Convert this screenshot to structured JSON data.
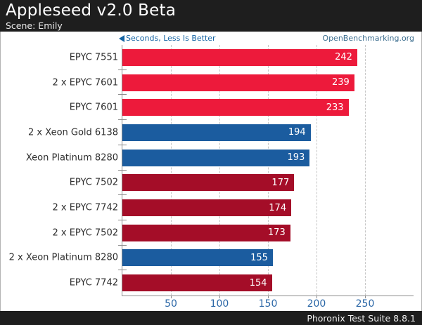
{
  "header": {
    "title": "Appleseed v2.0 Beta",
    "subtitle": "Scene: Emily"
  },
  "meta": {
    "orientation_note": "Seconds, Less Is Better",
    "watermark": "OpenBenchmarking.org"
  },
  "footer": {
    "text": "Phoronix Test Suite 8.8.1"
  },
  "colors": {
    "red": "#ed1a3b",
    "darkred": "#a40d28",
    "blue": "#1b5c9f",
    "accent_blue": "#1464a4",
    "watermark_teal": "#3c6e8f",
    "tick_blue": "#2a66a6"
  },
  "chart_data": {
    "type": "bar",
    "orientation": "horizontal",
    "title": "Appleseed v2.0 Beta",
    "subtitle": "Scene: Emily",
    "unit": "Seconds",
    "better": "Less Is Better",
    "xlim": [
      0,
      300
    ],
    "x_ticks": [
      50,
      100,
      150,
      200,
      250
    ],
    "grid": "dashed-vertical",
    "legend_position": "none",
    "categories": [
      "EPYC 7551",
      "2 x EPYC 7601",
      "EPYC 7601",
      "2 x Xeon Gold 6138",
      "Xeon Platinum 8280",
      "EPYC 7502",
      "2 x EPYC 7742",
      "2 x EPYC 7502",
      "2 x Xeon Platinum 8280",
      "EPYC 7742"
    ],
    "values": [
      242,
      239,
      233,
      194,
      193,
      177,
      174,
      173,
      155,
      154
    ],
    "bar_colors": [
      "red",
      "red",
      "red",
      "blue",
      "blue",
      "darkred",
      "darkred",
      "darkred",
      "blue",
      "darkred"
    ]
  }
}
